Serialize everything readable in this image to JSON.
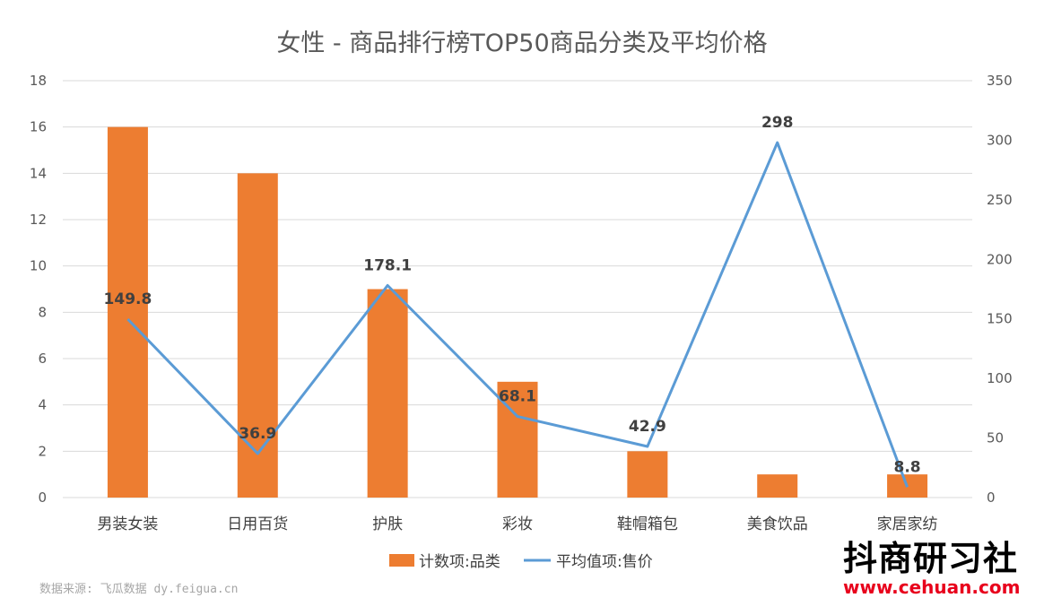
{
  "chart_data": {
    "type": "bar+line",
    "title": "女性 - 商品排行榜TOP50商品分类及平均价格",
    "categories": [
      "男装女装",
      "日用百货",
      "护肤",
      "彩妆",
      "鞋帽箱包",
      "美食饮品",
      "家居家纺"
    ],
    "series": [
      {
        "name": "计数项:品类",
        "type": "bar",
        "axis": "left",
        "values": [
          16,
          14,
          9,
          5,
          2,
          1,
          1
        ]
      },
      {
        "name": "平均值项:售价",
        "type": "line",
        "axis": "right",
        "values": [
          149.8,
          36.9,
          178.1,
          68.1,
          42.9,
          298,
          8.8
        ],
        "labels": [
          "149.8",
          "36.9",
          "178.1",
          "68.1",
          "42.9",
          "298",
          "8.8"
        ]
      }
    ],
    "left_axis": {
      "min": 0,
      "max": 18,
      "ticks": [
        "0",
        "2",
        "4",
        "6",
        "8",
        "10",
        "12",
        "14",
        "16",
        "18"
      ]
    },
    "right_axis": {
      "min": 0,
      "max": 350,
      "ticks": [
        "0",
        "50",
        "100",
        "150",
        "200",
        "250",
        "300",
        "350"
      ]
    },
    "grid": true,
    "legend_position": "bottom",
    "colors": {
      "bar": "#ed7d31",
      "line": "#5b9bd5",
      "grid": "#d9d9d9"
    }
  },
  "footer": {
    "source": "数据来源: 飞瓜数据 dy.feigua.cn",
    "brand_name": "抖商研习社",
    "brand_url": "www.cehuan.com"
  }
}
